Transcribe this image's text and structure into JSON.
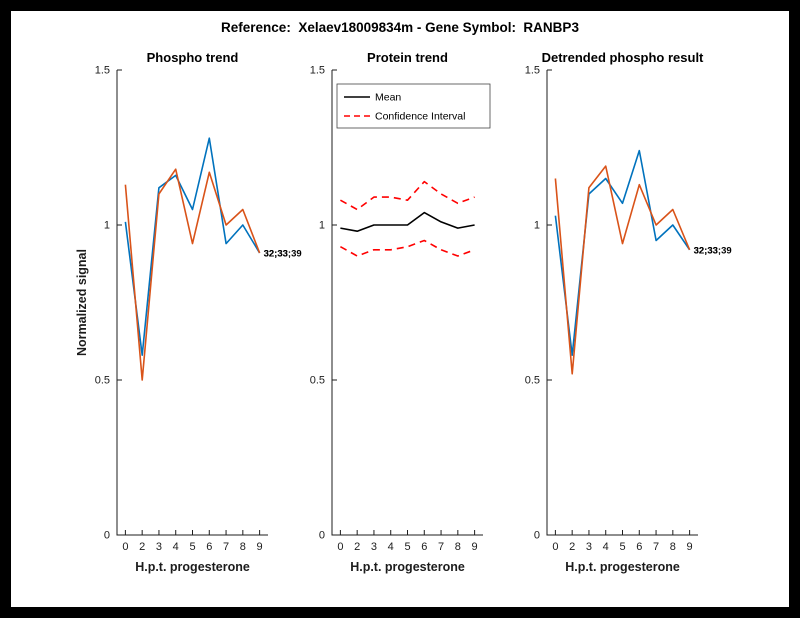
{
  "figure": {
    "title": "Reference:  Xelaev18009834m - Gene Symbol:  RANBP3",
    "frame_color": "#000000",
    "background": "#ffffff"
  },
  "axes": {
    "xlabel": "H.p.t. progesterone",
    "ylabel": "Normalized signal",
    "xticks": [
      "0",
      "2",
      "3",
      "4",
      "5",
      "6",
      "7",
      "8",
      "9"
    ],
    "yticks": [
      "0",
      "0.5",
      "1",
      "1.5"
    ],
    "ylim": [
      0,
      1.5
    ]
  },
  "colors": {
    "blue": "#0072BD",
    "orange": "#D95319",
    "red": "#FF0000",
    "black": "#000000"
  },
  "chart_data": [
    {
      "type": "line",
      "title": "Phospho trend",
      "x": [
        0,
        2,
        3,
        4,
        5,
        6,
        7,
        8,
        9
      ],
      "xlabel": "H.p.t. progesterone",
      "ylabel": "Normalized signal",
      "ylim": [
        0,
        1.5
      ],
      "series": [
        {
          "name": "phospho-cluster-blue",
          "color": "#0072BD",
          "dash": false,
          "values": [
            1.01,
            0.58,
            1.12,
            1.16,
            1.05,
            1.28,
            0.94,
            1.0,
            0.91
          ]
        },
        {
          "name": "phospho-cluster-orange",
          "color": "#D95319",
          "dash": false,
          "values": [
            1.13,
            0.5,
            1.1,
            1.18,
            0.94,
            1.17,
            1.0,
            1.05,
            0.91
          ]
        }
      ],
      "end_labels": [
        "32;33",
        "32;33;39"
      ]
    },
    {
      "type": "line",
      "title": "Protein trend",
      "x": [
        0,
        2,
        3,
        4,
        5,
        6,
        7,
        8,
        9
      ],
      "xlabel": "H.p.t. progesterone",
      "ylim": [
        0,
        1.5
      ],
      "series": [
        {
          "name": "mean",
          "color": "#000000",
          "dash": false,
          "values": [
            0.99,
            0.98,
            1.0,
            1.0,
            1.0,
            1.04,
            1.01,
            0.99,
            1.0
          ]
        },
        {
          "name": "confidence-upper",
          "color": "#FF0000",
          "dash": true,
          "values": [
            1.08,
            1.05,
            1.09,
            1.09,
            1.08,
            1.14,
            1.1,
            1.07,
            1.09
          ]
        },
        {
          "name": "confidence-lower",
          "color": "#FF0000",
          "dash": true,
          "values": [
            0.93,
            0.9,
            0.92,
            0.92,
            0.93,
            0.95,
            0.92,
            0.9,
            0.92
          ]
        }
      ],
      "legend": {
        "position": "top-left",
        "items": [
          {
            "label": "Mean",
            "color": "#000000",
            "dash": false
          },
          {
            "label": "Confidence Interval",
            "color": "#FF0000",
            "dash": true
          }
        ]
      }
    },
    {
      "type": "line",
      "title": "Detrended phospho result",
      "x": [
        0,
        2,
        3,
        4,
        5,
        6,
        7,
        8,
        9
      ],
      "xlabel": "H.p.t. progesterone",
      "ylim": [
        0,
        1.5
      ],
      "series": [
        {
          "name": "detrended-cluster-blue",
          "color": "#0072BD",
          "dash": false,
          "values": [
            1.03,
            0.58,
            1.1,
            1.15,
            1.07,
            1.24,
            0.95,
            1.0,
            0.92
          ]
        },
        {
          "name": "detrended-cluster-orange",
          "color": "#D95319",
          "dash": false,
          "values": [
            1.15,
            0.52,
            1.12,
            1.19,
            0.94,
            1.13,
            1.0,
            1.05,
            0.92
          ]
        }
      ],
      "end_labels": [
        "32;33",
        "32;33;39"
      ]
    }
  ]
}
